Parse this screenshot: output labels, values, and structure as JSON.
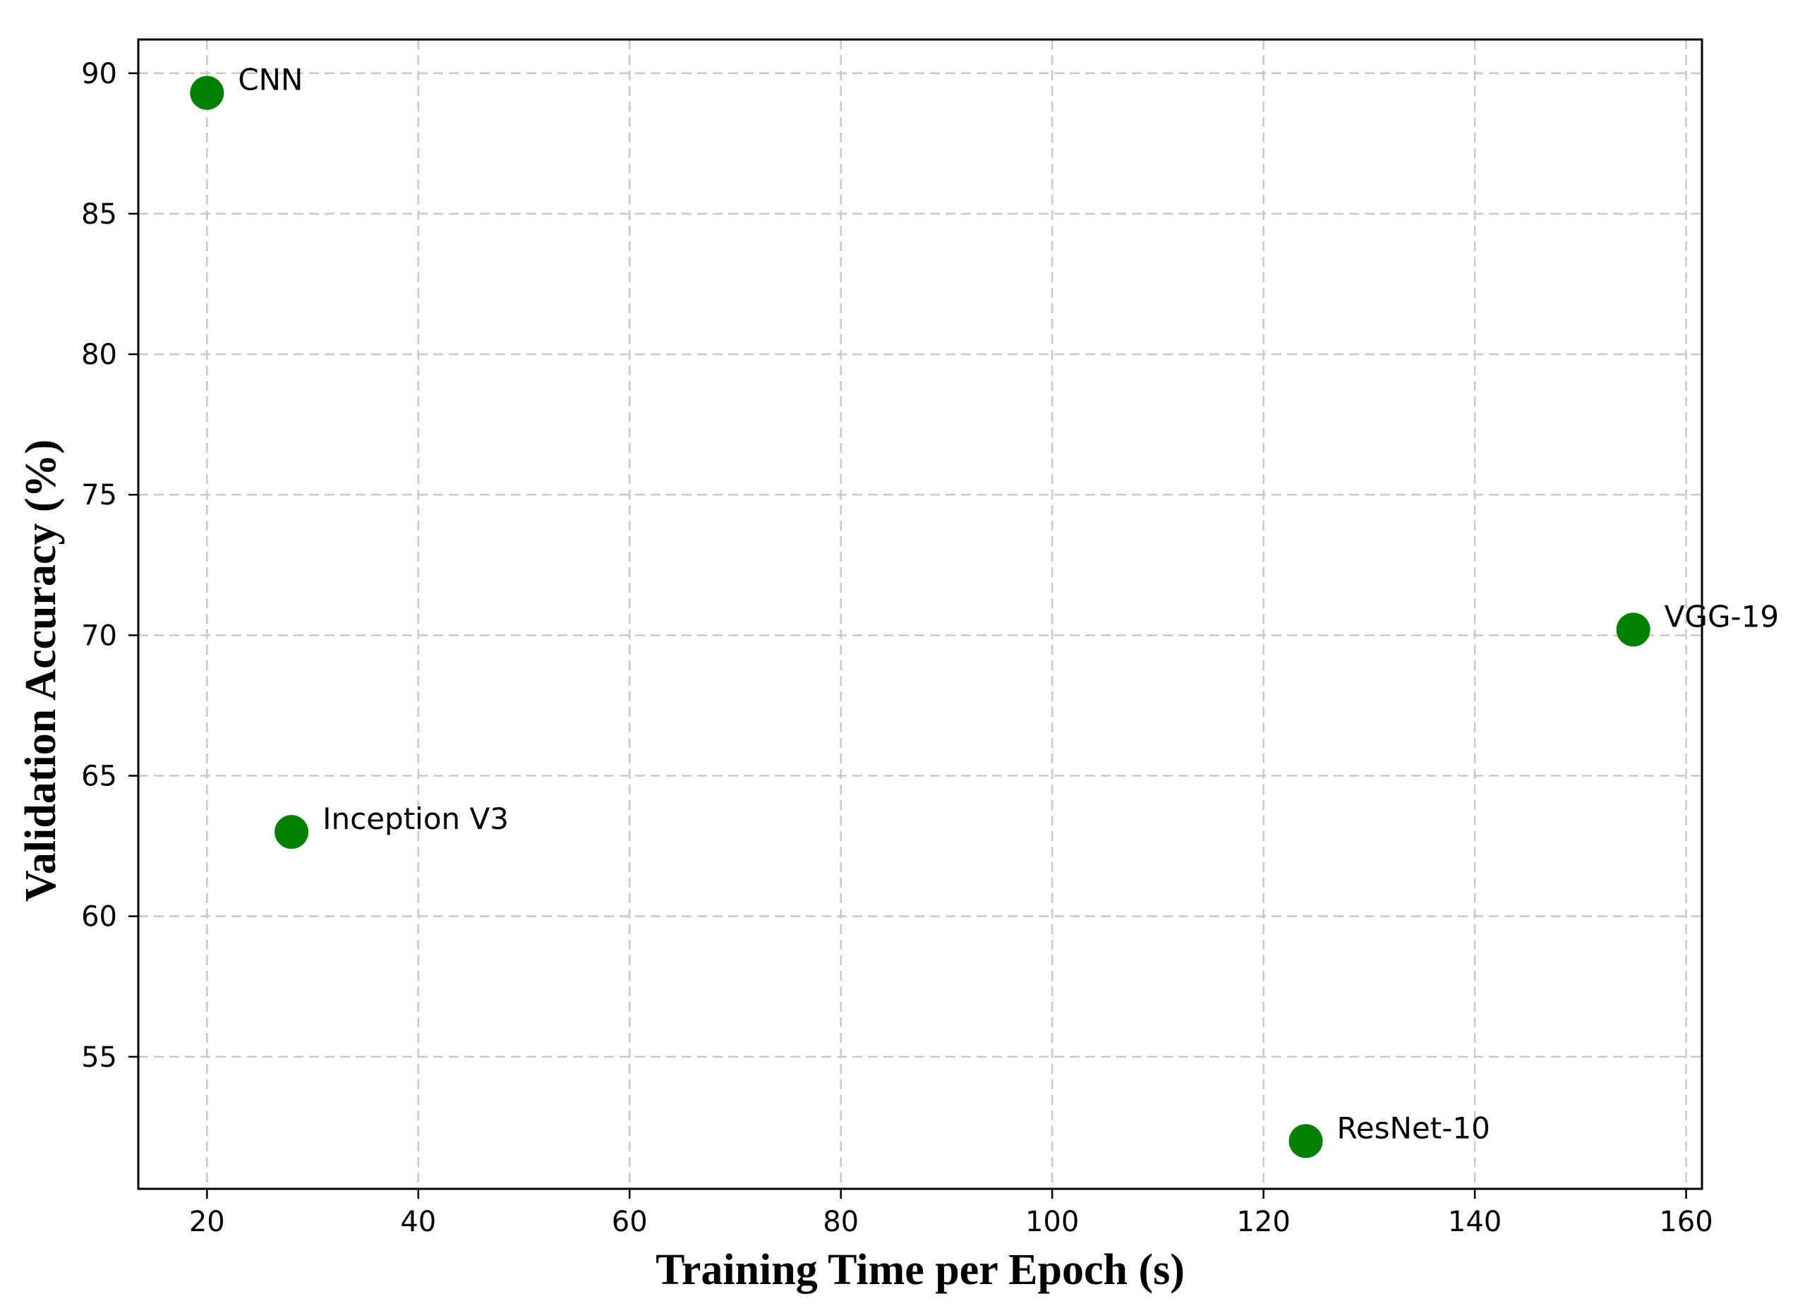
{
  "chart_data": {
    "type": "scatter",
    "title": "",
    "xlabel": "Training Time per Epoch (s)",
    "ylabel": "Validation Accuracy (%)",
    "xlim": [
      13.5,
      161.5
    ],
    "ylim": [
      50.3,
      91.2
    ],
    "xticks": [
      20,
      40,
      60,
      80,
      100,
      120,
      140,
      160
    ],
    "yticks": [
      55,
      60,
      65,
      70,
      75,
      80,
      85,
      90
    ],
    "grid": true,
    "marker_color": "#008000",
    "points": [
      {
        "label": "CNN",
        "x": 20,
        "y": 89.3
      },
      {
        "label": "Inception V3",
        "x": 28,
        "y": 63.0
      },
      {
        "label": "ResNet-10",
        "x": 124,
        "y": 52.0
      },
      {
        "label": "VGG-19",
        "x": 155,
        "y": 70.2
      }
    ]
  }
}
